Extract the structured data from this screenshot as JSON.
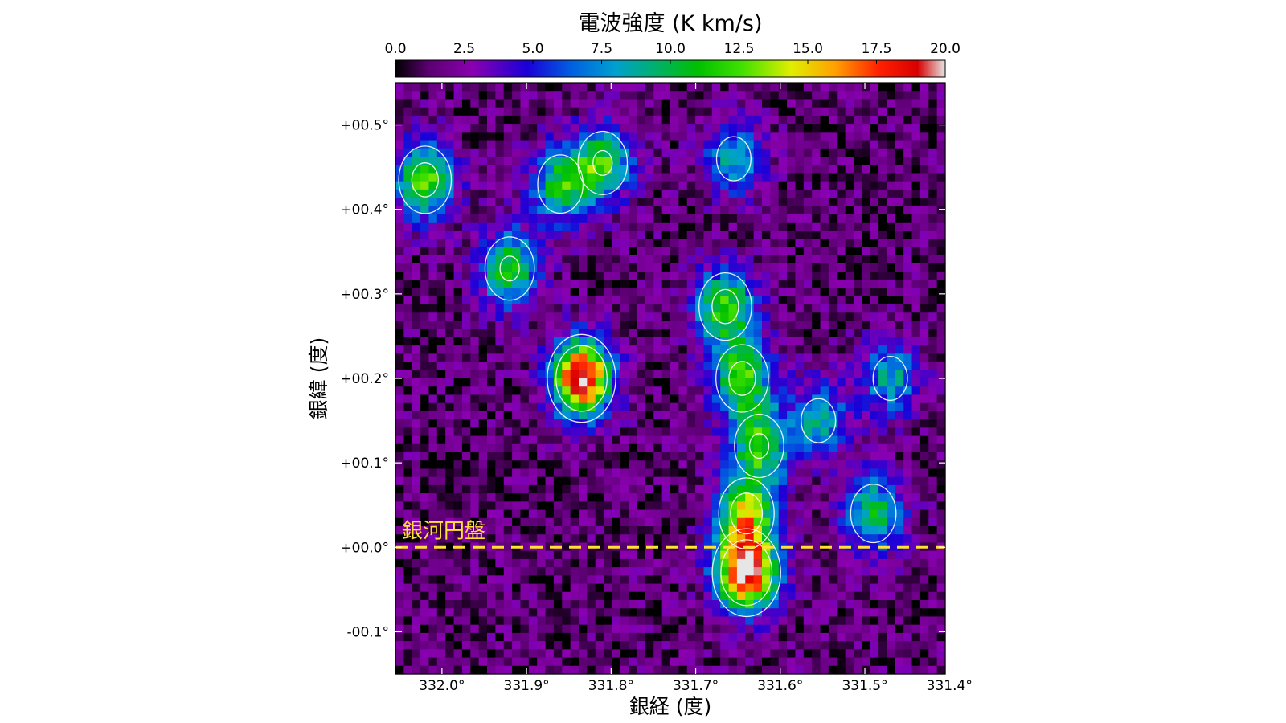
{
  "chart_data": {
    "type": "heatmap",
    "title": "電波強度 (K km/s)",
    "xlabel": "銀経 (度)",
    "ylabel": "銀緯 (度)",
    "x_ticks": [
      "332.0°",
      "331.9°",
      "331.8°",
      "331.7°",
      "331.6°",
      "331.5°",
      "331.4°"
    ],
    "x_tick_values": [
      332.0,
      331.9,
      331.8,
      331.7,
      331.6,
      331.5,
      331.4
    ],
    "y_ticks": [
      "+00.5°",
      "+00.4°",
      "+00.3°",
      "+00.2°",
      "+00.1°",
      "+00.0°",
      "-00.1°"
    ],
    "y_tick_values": [
      0.5,
      0.4,
      0.3,
      0.2,
      0.1,
      0.0,
      -0.1
    ],
    "xlim": [
      332.055,
      331.405
    ],
    "ylim": [
      -0.15,
      0.55
    ],
    "colorbar": {
      "ticks": [
        "0.0",
        "2.5",
        "5.0",
        "7.5",
        "10.0",
        "12.5",
        "15.0",
        "17.5",
        "20.0"
      ],
      "tick_values": [
        0,
        2.5,
        5,
        7.5,
        10,
        12.5,
        15,
        17.5,
        20
      ],
      "range": [
        0,
        20
      ],
      "placement": "top"
    },
    "annotations": [
      {
        "text": "銀河円盤",
        "b": 0.0,
        "style": "yellow-dashed-line"
      }
    ],
    "clumps": [
      {
        "l": 332.02,
        "b": 0.435,
        "peak": 11
      },
      {
        "l": 331.92,
        "b": 0.33,
        "peak": 10
      },
      {
        "l": 331.835,
        "b": 0.2,
        "peak": 19
      },
      {
        "l": 331.81,
        "b": 0.455,
        "peak": 10
      },
      {
        "l": 331.86,
        "b": 0.43,
        "peak": 9
      },
      {
        "l": 331.655,
        "b": 0.46,
        "peak": 7
      },
      {
        "l": 331.665,
        "b": 0.285,
        "peak": 11
      },
      {
        "l": 331.645,
        "b": 0.2,
        "peak": 11
      },
      {
        "l": 331.625,
        "b": 0.12,
        "peak": 10
      },
      {
        "l": 331.64,
        "b": 0.04,
        "peak": 12
      },
      {
        "l": 331.64,
        "b": -0.03,
        "peak": 19
      },
      {
        "l": 331.555,
        "b": 0.15,
        "peak": 7
      },
      {
        "l": 331.47,
        "b": 0.2,
        "peak": 7
      },
      {
        "l": 331.49,
        "b": 0.04,
        "peak": 9
      }
    ]
  },
  "colors": {
    "disk_line": "#ffe033",
    "contour": "#ffffff",
    "axis": "#000000"
  }
}
